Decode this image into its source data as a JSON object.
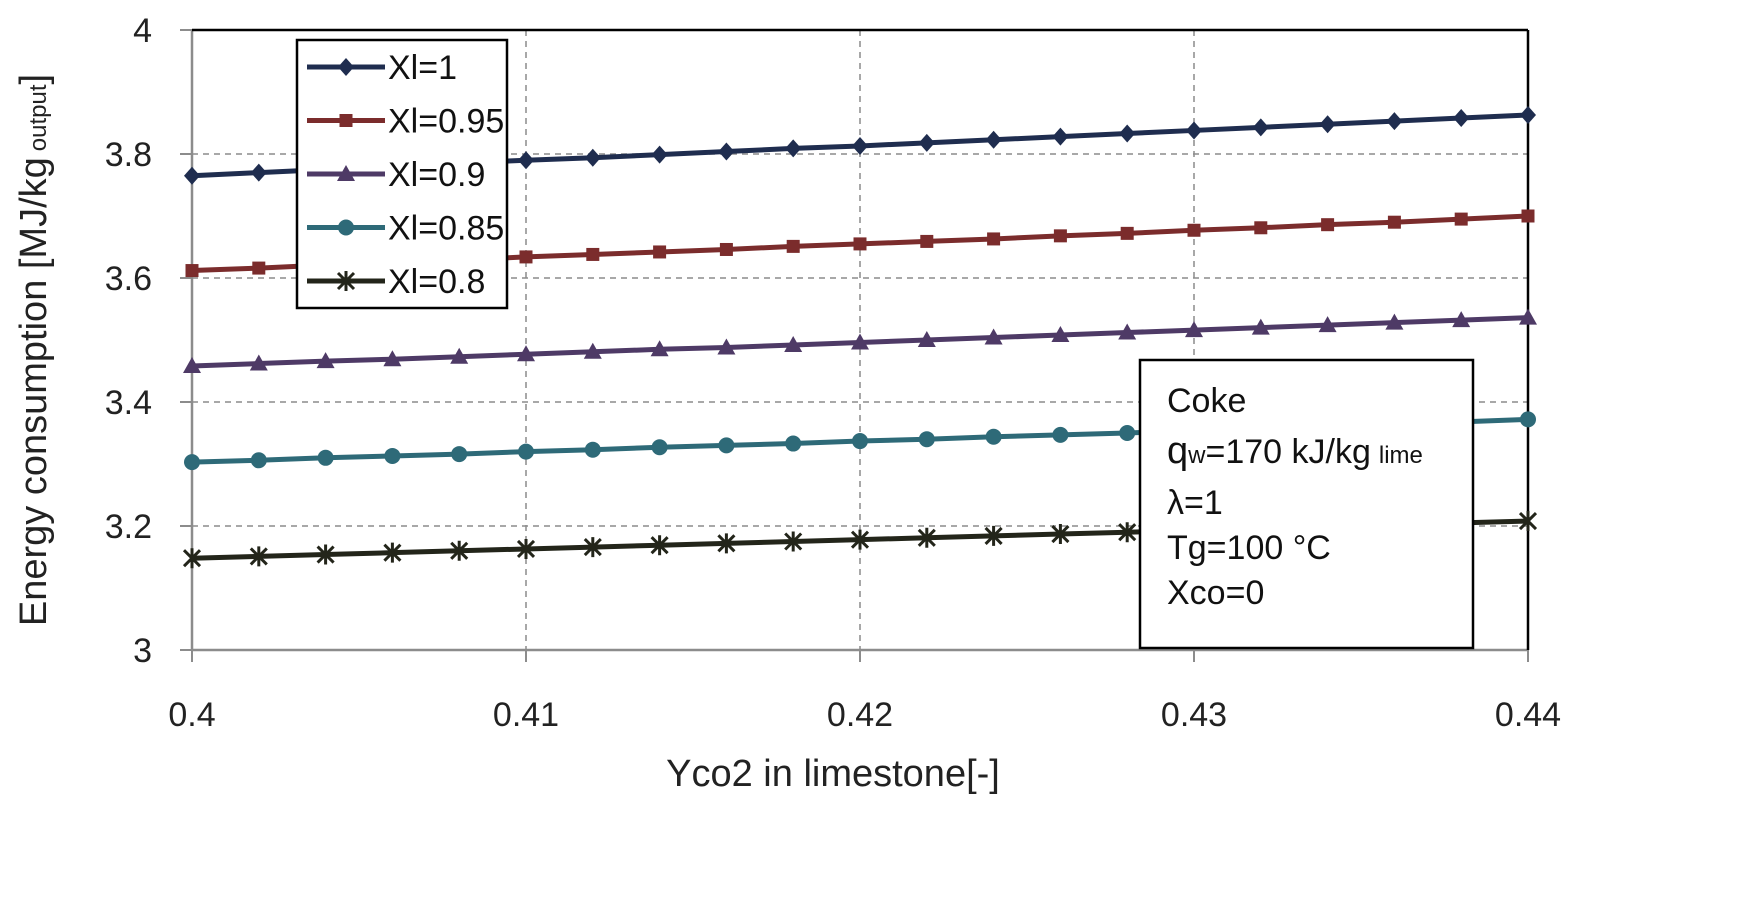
{
  "chart_data": {
    "type": "line",
    "xlabel": "Yco2 in limestone[-]",
    "ylabel": "Energy consumption [MJ/kg",
    "ylabel_sub": "output",
    "ylabel_close": "]",
    "xlim": [
      0.4,
      0.44
    ],
    "ylim": [
      3,
      4
    ],
    "x_ticks": [
      0.4,
      0.41,
      0.42,
      0.43,
      0.44
    ],
    "x_tick_labels": [
      "0.4",
      "0.41",
      "0.42",
      "0.43",
      "0.44"
    ],
    "y_ticks": [
      3,
      3.2,
      3.4,
      3.6,
      3.8,
      4
    ],
    "y_tick_labels": [
      "3",
      "3.2",
      "3.4",
      "3.6",
      "3.8",
      "4"
    ],
    "grid": true,
    "legend_position": "top-left",
    "x": [
      0.4,
      0.402,
      0.404,
      0.406,
      0.408,
      0.41,
      0.412,
      0.414,
      0.416,
      0.418,
      0.42,
      0.422,
      0.424,
      0.426,
      0.428,
      0.43,
      0.432,
      0.434,
      0.436,
      0.438,
      0.44
    ],
    "series": [
      {
        "name": "Xl=1",
        "color": "#1f2d4f",
        "marker": "diamond",
        "values": [
          3.765,
          3.77,
          3.775,
          3.78,
          3.785,
          3.79,
          3.794,
          3.799,
          3.804,
          3.809,
          3.813,
          3.818,
          3.823,
          3.828,
          3.833,
          3.838,
          3.843,
          3.848,
          3.853,
          3.858,
          3.863
        ]
      },
      {
        "name": "Xl=0.95",
        "color": "#7b2c2c",
        "marker": "square",
        "values": [
          3.612,
          3.616,
          3.621,
          3.625,
          3.629,
          3.634,
          3.638,
          3.642,
          3.646,
          3.651,
          3.655,
          3.659,
          3.663,
          3.668,
          3.672,
          3.677,
          3.681,
          3.686,
          3.69,
          3.695,
          3.7
        ]
      },
      {
        "name": "Xl=0.9",
        "color": "#4e3a66",
        "marker": "triangle",
        "values": [
          3.458,
          3.462,
          3.466,
          3.469,
          3.473,
          3.477,
          3.481,
          3.485,
          3.488,
          3.492,
          3.496,
          3.5,
          3.504,
          3.508,
          3.512,
          3.516,
          3.52,
          3.524,
          3.528,
          3.532,
          3.536
        ]
      },
      {
        "name": "Xl=0.85",
        "color": "#2e6a78",
        "marker": "circle",
        "values": [
          3.303,
          3.306,
          3.31,
          3.313,
          3.316,
          3.32,
          3.323,
          3.327,
          3.33,
          3.333,
          3.337,
          3.34,
          3.344,
          3.347,
          3.35,
          3.354,
          3.357,
          3.361,
          3.364,
          3.368,
          3.372
        ]
      },
      {
        "name": "Xl=0.8",
        "color": "#23251a",
        "marker": "star",
        "values": [
          3.148,
          3.151,
          3.154,
          3.157,
          3.16,
          3.163,
          3.166,
          3.169,
          3.172,
          3.175,
          3.178,
          3.181,
          3.184,
          3.187,
          3.19,
          3.193,
          3.196,
          3.199,
          3.202,
          3.205,
          3.208
        ]
      }
    ],
    "annotation": {
      "line1": "Coke",
      "line2_main": "q",
      "line2_sub": "w",
      "line2_text": "=170 kJ/kg",
      "line2_tail": "lime",
      "line3": "λ=1",
      "line4": "Tg=100 °C",
      "line5": "Xco=0"
    }
  }
}
